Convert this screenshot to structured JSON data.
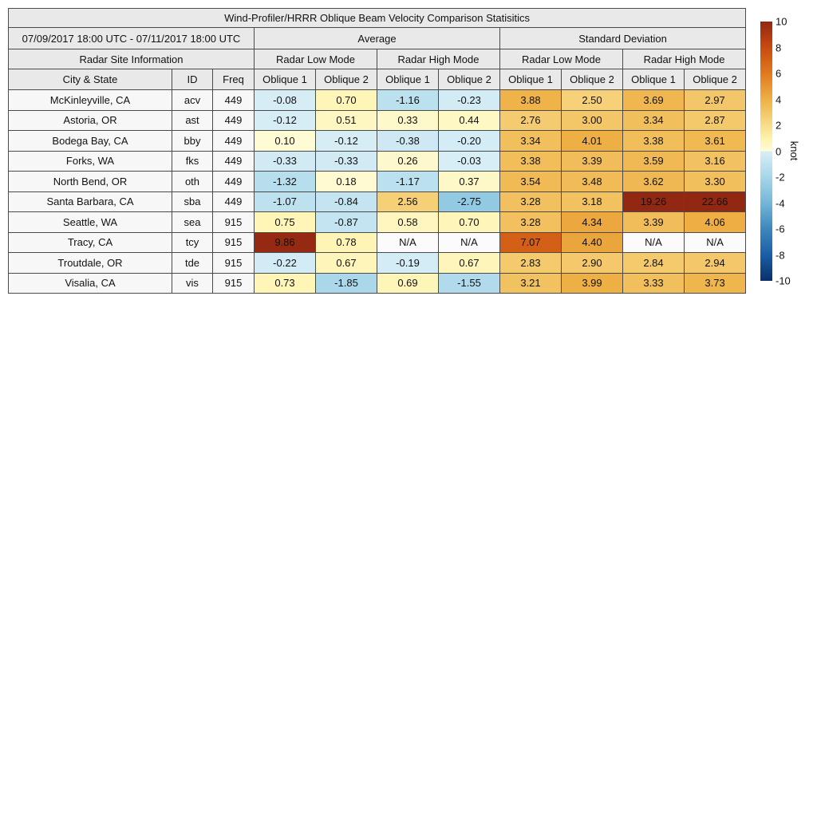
{
  "title": "Wind-Profiler/HRRR Oblique Beam Velocity Comparison Statisitics",
  "table": {
    "date_range": "07/09/2017 18:00 UTC - 07/11/2017 18:00 UTC",
    "group_headers": [
      "Average",
      "Standard Deviation"
    ],
    "section_header": "Radar Site Information",
    "mode_headers": [
      "Radar Low Mode",
      "Radar High Mode",
      "Radar Low Mode",
      "Radar High Mode"
    ],
    "column_headers": [
      "City & State",
      "ID",
      "Freq",
      "Oblique 1",
      "Oblique 2",
      "Oblique 1",
      "Oblique 2",
      "Oblique 1",
      "Oblique 2",
      "Oblique 1",
      "Oblique 2"
    ],
    "na_label": "N/A",
    "rows": [
      {
        "city": "McKinleyville, CA",
        "id": "acv",
        "freq": "449",
        "values": [
          -0.08,
          0.7,
          -1.16,
          -0.23,
          3.88,
          2.5,
          3.69,
          2.97
        ]
      },
      {
        "city": "Astoria, OR",
        "id": "ast",
        "freq": "449",
        "values": [
          -0.12,
          0.51,
          0.33,
          0.44,
          2.76,
          3.0,
          3.34,
          2.87
        ]
      },
      {
        "city": "Bodega Bay, CA",
        "id": "bby",
        "freq": "449",
        "values": [
          0.1,
          -0.12,
          -0.38,
          -0.2,
          3.34,
          4.01,
          3.38,
          3.61
        ]
      },
      {
        "city": "Forks, WA",
        "id": "fks",
        "freq": "449",
        "values": [
          -0.33,
          -0.33,
          0.26,
          -0.03,
          3.38,
          3.39,
          3.59,
          3.16
        ]
      },
      {
        "city": "North Bend, OR",
        "id": "oth",
        "freq": "449",
        "values": [
          -1.32,
          0.18,
          -1.17,
          0.37,
          3.54,
          3.48,
          3.62,
          3.3
        ]
      },
      {
        "city": "Santa Barbara, CA",
        "id": "sba",
        "freq": "449",
        "values": [
          -1.07,
          -0.84,
          2.56,
          -2.75,
          3.28,
          3.18,
          19.26,
          22.66
        ]
      },
      {
        "city": "Seattle, WA",
        "id": "sea",
        "freq": "915",
        "values": [
          0.75,
          -0.87,
          0.58,
          0.7,
          3.28,
          4.34,
          3.39,
          4.06
        ]
      },
      {
        "city": "Tracy, CA",
        "id": "tcy",
        "freq": "915",
        "values": [
          9.86,
          0.78,
          null,
          null,
          7.07,
          4.4,
          null,
          null
        ]
      },
      {
        "city": "Troutdale, OR",
        "id": "tde",
        "freq": "915",
        "values": [
          -0.22,
          0.67,
          -0.19,
          0.67,
          2.83,
          2.9,
          2.84,
          2.94
        ]
      },
      {
        "city": "Visalia, CA",
        "id": "vis",
        "freq": "915",
        "values": [
          0.73,
          -1.85,
          0.69,
          -1.55,
          3.21,
          3.99,
          3.33,
          3.73
        ]
      }
    ]
  },
  "colorbar": {
    "label": "knot",
    "min": -10,
    "max": 10,
    "ticks": [
      10,
      8,
      6,
      4,
      2,
      0,
      -2,
      -4,
      -6,
      -8,
      -10
    ],
    "colormap": {
      "positive": [
        [
          0,
          "#fffcd9"
        ],
        [
          1,
          "#fdf2ab"
        ],
        [
          2,
          "#f8dc8a"
        ],
        [
          4,
          "#eeb045"
        ],
        [
          6,
          "#e07a1d"
        ],
        [
          8,
          "#c84a10"
        ],
        [
          10,
          "#922712"
        ]
      ],
      "negative": [
        [
          0,
          "#d9eef6"
        ],
        [
          2,
          "#a6d6e9"
        ],
        [
          4,
          "#74b6d8"
        ],
        [
          6,
          "#3d87bc"
        ],
        [
          8,
          "#1b5ea6"
        ],
        [
          10,
          "#08306b"
        ]
      ]
    },
    "na_bg": "#fbfbfb"
  },
  "chart_data": {
    "type": "table",
    "title": "Wind-Profiler/HRRR Oblique Beam Velocity Comparison Statisitics",
    "subtitle": "07/09/2017 18:00 UTC - 07/11/2017 18:00 UTC",
    "unit": "knot",
    "color_scale": {
      "min": -10,
      "max": 10,
      "label": "knot"
    },
    "columns": [
      "City & State",
      "ID",
      "Freq",
      "Avg Low Oblique 1",
      "Avg Low Oblique 2",
      "Avg High Oblique 1",
      "Avg High Oblique 2",
      "Std Low Oblique 1",
      "Std Low Oblique 2",
      "Std High Oblique 1",
      "Std High Oblique 2"
    ],
    "rows": [
      [
        "McKinleyville, CA",
        "acv",
        449,
        -0.08,
        0.7,
        -1.16,
        -0.23,
        3.88,
        2.5,
        3.69,
        2.97
      ],
      [
        "Astoria, OR",
        "ast",
        449,
        -0.12,
        0.51,
        0.33,
        0.44,
        2.76,
        3.0,
        3.34,
        2.87
      ],
      [
        "Bodega Bay, CA",
        "bby",
        449,
        0.1,
        -0.12,
        -0.38,
        -0.2,
        3.34,
        4.01,
        3.38,
        3.61
      ],
      [
        "Forks, WA",
        "fks",
        449,
        -0.33,
        -0.33,
        0.26,
        -0.03,
        3.38,
        3.39,
        3.59,
        3.16
      ],
      [
        "North Bend, OR",
        "oth",
        449,
        -1.32,
        0.18,
        -1.17,
        0.37,
        3.54,
        3.48,
        3.62,
        3.3
      ],
      [
        "Santa Barbara, CA",
        "sba",
        449,
        -1.07,
        -0.84,
        2.56,
        -2.75,
        3.28,
        3.18,
        19.26,
        22.66
      ],
      [
        "Seattle, WA",
        "sea",
        915,
        0.75,
        -0.87,
        0.58,
        0.7,
        3.28,
        4.34,
        3.39,
        4.06
      ],
      [
        "Tracy, CA",
        "tcy",
        915,
        9.86,
        0.78,
        null,
        null,
        7.07,
        4.4,
        null,
        null
      ],
      [
        "Troutdale, OR",
        "tde",
        915,
        -0.22,
        0.67,
        -0.19,
        0.67,
        2.83,
        2.9,
        2.84,
        2.94
      ],
      [
        "Visalia, CA",
        "vis",
        915,
        0.73,
        -1.85,
        0.69,
        -1.55,
        3.21,
        3.99,
        3.33,
        3.73
      ]
    ]
  }
}
